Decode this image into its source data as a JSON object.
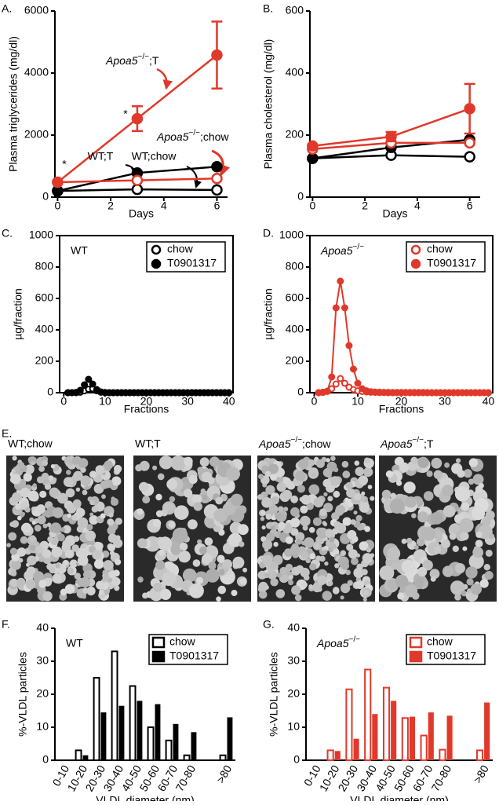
{
  "chart_data": [
    {
      "type": "line",
      "panel_label": "A.",
      "xlabel": "Days",
      "ylabel": "Plasma triglycerides (mg/dl)",
      "x": [
        0,
        3,
        6
      ],
      "xlim": [
        -0.1,
        6.4
      ],
      "xticks": [
        0,
        2,
        4,
        6
      ],
      "ylim": [
        0,
        6000
      ],
      "yticks": [
        0,
        2000,
        4000,
        6000
      ],
      "series": [
        {
          "color": "#000000",
          "marker": "open",
          "values": [
            200,
            250,
            230
          ]
        },
        {
          "color": "#000000",
          "marker": "filled",
          "values": [
            200,
            780,
            980
          ]
        },
        {
          "color": "#e0392b",
          "marker": "open",
          "values": [
            480,
            540,
            600
          ]
        },
        {
          "color": "#e0392b",
          "marker": "filled",
          "values": [
            480,
            2530,
            4580
          ],
          "errors": [
            null,
            400,
            1080
          ]
        }
      ],
      "annotations": [
        {
          "text": "Apoa5−/−;T",
          "color": "#e0392b"
        },
        {
          "text": "*",
          "color": "#000000"
        },
        {
          "text": "*",
          "color": "#000000"
        },
        {
          "text": "WT;T",
          "color": "#000000"
        },
        {
          "text": "WT;chow",
          "color": "#000000"
        },
        {
          "text": "Apoa5−/−;chow",
          "color": "#e0392b"
        }
      ]
    },
    {
      "type": "line",
      "panel_label": "B.",
      "xlabel": "Days",
      "ylabel": "Plasma cholesterol (mg/dl)",
      "x": [
        0,
        3,
        6
      ],
      "xlim": [
        -0.1,
        6.4
      ],
      "xticks": [
        0,
        2,
        4,
        6
      ],
      "ylim": [
        0,
        600
      ],
      "yticks": [
        0,
        200,
        400,
        600
      ],
      "series": [
        {
          "color": "#000000",
          "marker": "open",
          "values": [
            125,
            135,
            130
          ]
        },
        {
          "color": "#000000",
          "marker": "filled",
          "values": [
            125,
            160,
            185
          ]
        },
        {
          "color": "#e0392b",
          "marker": "open",
          "values": [
            155,
            175,
            175
          ]
        },
        {
          "color": "#e0392b",
          "marker": "filled",
          "values": [
            165,
            195,
            285
          ],
          "errors": [
            null,
            15,
            80
          ]
        }
      ]
    },
    {
      "type": "line",
      "panel_label": "C.",
      "xlabel": "Fractions",
      "ylabel": "µg/fraction",
      "inset": "WT",
      "box": true,
      "legend": "upper right",
      "x": [
        1,
        2,
        3,
        4,
        5,
        6,
        7,
        8,
        9,
        10,
        11,
        12,
        13,
        14,
        15,
        16,
        17,
        18,
        19,
        20,
        21,
        22,
        23,
        24,
        25,
        26,
        27,
        28,
        29,
        30,
        31,
        32,
        33,
        34,
        35,
        36,
        37,
        38,
        39,
        40
      ],
      "xlim": [
        -1,
        41
      ],
      "xticks": [
        0,
        10,
        20,
        30,
        40
      ],
      "ylim": [
        0,
        1000
      ],
      "yticks": [
        0,
        200,
        400,
        600,
        800,
        1000
      ],
      "series": [
        {
          "name": "chow",
          "color": "#000000",
          "marker": "open",
          "values": [
            0,
            0,
            0,
            3,
            12,
            22,
            25,
            12,
            3,
            0,
            0,
            0,
            0,
            0,
            0,
            0,
            0,
            0,
            0,
            0,
            0,
            0,
            0,
            0,
            0,
            0,
            0,
            0,
            0,
            0,
            0,
            0,
            0,
            0,
            0,
            0,
            0,
            0,
            0,
            0
          ]
        },
        {
          "name": "T0901317",
          "color": "#000000",
          "marker": "filled",
          "values": [
            0,
            0,
            2,
            15,
            50,
            85,
            55,
            20,
            5,
            1,
            0,
            0,
            0,
            0,
            0,
            0,
            0,
            0,
            0,
            0,
            0,
            0,
            0,
            0,
            0,
            0,
            0,
            0,
            0,
            0,
            0,
            0,
            0,
            0,
            0,
            0,
            0,
            0,
            0,
            0
          ]
        }
      ]
    },
    {
      "type": "line",
      "panel_label": "D.",
      "xlabel": "Fractions",
      "ylabel": "µg/fraction",
      "inset": "Apoa5−/−",
      "box": true,
      "legend": "upper right",
      "x": [
        1,
        2,
        3,
        4,
        5,
        6,
        7,
        8,
        9,
        10,
        11,
        12,
        13,
        14,
        15,
        16,
        17,
        18,
        19,
        20,
        21,
        22,
        23,
        24,
        25,
        26,
        27,
        28,
        29,
        30,
        31,
        32,
        33,
        34,
        35,
        36,
        37,
        38,
        39,
        40
      ],
      "xlim": [
        -1,
        41
      ],
      "xticks": [
        0,
        10,
        20,
        30,
        40
      ],
      "ylim": [
        0,
        1000
      ],
      "yticks": [
        0,
        200,
        400,
        600,
        800,
        1000
      ],
      "series": [
        {
          "name": "chow",
          "color": "#e0392b",
          "marker": "open",
          "values": [
            0,
            2,
            8,
            25,
            55,
            90,
            60,
            35,
            20,
            12,
            8,
            5,
            3,
            2,
            1,
            1,
            0,
            0,
            0,
            0,
            0,
            0,
            0,
            0,
            0,
            0,
            0,
            0,
            0,
            0,
            0,
            0,
            0,
            0,
            0,
            0,
            0,
            0,
            0,
            0
          ]
        },
        {
          "name": "T0901317",
          "color": "#e0392b",
          "marker": "filled",
          "values": [
            0,
            3,
            10,
            100,
            540,
            710,
            540,
            300,
            150,
            60,
            25,
            12,
            6,
            4,
            3,
            2,
            2,
            1,
            1,
            1,
            1,
            1,
            1,
            1,
            1,
            0,
            0,
            0,
            0,
            0,
            0,
            0,
            0,
            0,
            0,
            0,
            0,
            0,
            0,
            0
          ]
        }
      ]
    },
    {
      "type": "bar",
      "panel_label": "F.",
      "xlabel": "VLDL diameter (nm)",
      "ylabel": "%-VLDL particles",
      "inset": "WT",
      "legend": "upper right",
      "categories": [
        "0-10",
        "10-20",
        "20-30",
        "30-40",
        "40-50",
        "50-60",
        "60-70",
        "70-80",
        ">80"
      ],
      "ylim": [
        0,
        40
      ],
      "yticks": [
        0,
        10,
        20,
        30,
        40
      ],
      "series": [
        {
          "name": "chow",
          "color": "#000000",
          "style": "open",
          "values": [
            0,
            3,
            25,
            33,
            22.5,
            10,
            6,
            1.5,
            1.5
          ]
        },
        {
          "name": "T0901317",
          "color": "#000000",
          "style": "filled",
          "values": [
            0,
            1.5,
            14.5,
            16.5,
            18,
            17,
            11,
            8.5,
            13
          ]
        }
      ]
    },
    {
      "type": "bar",
      "panel_label": "G.",
      "xlabel": "VLDL diameter (nm)",
      "ylabel": "%-VLDL particles",
      "inset": "Apoa5−/−",
      "legend": "upper right",
      "categories": [
        "0-10",
        "10-20",
        "20-30",
        "30-40",
        "40-50",
        "50-60",
        "60-70",
        "70-80",
        ">80"
      ],
      "ylim": [
        0,
        40
      ],
      "yticks": [
        0,
        10,
        20,
        30,
        40
      ],
      "series": [
        {
          "name": "chow",
          "color": "#e0392b",
          "style": "open",
          "values": [
            0,
            3,
            21.5,
            27.5,
            22,
            12.8,
            7.5,
            3.2,
            3
          ]
        },
        {
          "name": "T0901317",
          "color": "#e0392b",
          "style": "filled",
          "values": [
            0,
            2.8,
            6.5,
            14,
            18,
            13.2,
            14.5,
            13.5,
            17.5
          ]
        }
      ]
    }
  ],
  "figure_e": {
    "panel_label": "E.",
    "images": [
      "WT;chow",
      "WT;T",
      "Apoa5−/−;chow",
      "Apoa5−/−;T"
    ]
  }
}
